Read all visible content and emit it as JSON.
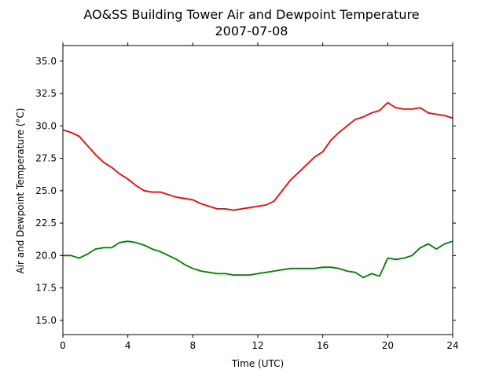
{
  "chart_data": {
    "type": "line",
    "title": "AO&SS Building Tower Air and Dewpoint Temperature",
    "subtitle": "2007-07-08",
    "xlabel": "Time (UTC)",
    "ylabel": "Air and Dewpoint Temperature (°C)",
    "xlim": [
      0,
      24
    ],
    "ylim": [
      13.9,
      36.2
    ],
    "xticks": [
      0,
      4,
      8,
      12,
      16,
      20,
      24
    ],
    "xtick_labels": [
      "0",
      "4",
      "8",
      "12",
      "16",
      "20",
      "24"
    ],
    "yticks": [
      15.0,
      17.5,
      20.0,
      22.5,
      25.0,
      27.5,
      30.0,
      32.5,
      35.0
    ],
    "ytick_labels": [
      "15.0",
      "17.5",
      "20.0",
      "22.5",
      "25.0",
      "27.5",
      "30.0",
      "32.5",
      "35.0"
    ],
    "grid": false,
    "series": [
      {
        "color": "#ff0000",
        "x": [
          0,
          0.5,
          1.0,
          1.5,
          2.0,
          2.5,
          3.0,
          3.5,
          4.0,
          4.5,
          5.0,
          5.5,
          6.0,
          6.5,
          7.0,
          7.5,
          8.0,
          8.5,
          9.0,
          9.5,
          10.0,
          10.5,
          11.0,
          11.5,
          12.0,
          12.5,
          13.0,
          13.5,
          14.0,
          14.5,
          15.0,
          15.5,
          16.0,
          16.5,
          17.0,
          17.5,
          18.0,
          18.5,
          19.0,
          19.5,
          20.0,
          20.5,
          21.0,
          21.5,
          22.0,
          22.5,
          23.0,
          23.5,
          24.0
        ],
        "values": [
          29.7,
          29.5,
          29.2,
          28.5,
          27.8,
          27.2,
          26.8,
          26.3,
          25.9,
          25.4,
          25.0,
          24.9,
          24.9,
          24.7,
          24.5,
          24.4,
          24.3,
          24.0,
          23.8,
          23.6,
          23.6,
          23.5,
          23.6,
          23.7,
          23.8,
          23.9,
          24.2,
          25.0,
          25.8,
          26.4,
          27.0,
          27.6,
          28.0,
          28.9,
          29.5,
          30.0,
          30.5,
          30.7,
          31.0,
          31.2,
          31.8,
          31.4,
          31.3,
          31.3,
          31.4,
          31.0,
          30.9,
          30.8,
          30.6
        ]
      },
      {
        "color": "#008000",
        "x": [
          0,
          0.5,
          1.0,
          1.5,
          2.0,
          2.5,
          3.0,
          3.5,
          4.0,
          4.5,
          5.0,
          5.5,
          6.0,
          6.5,
          7.0,
          7.5,
          8.0,
          8.5,
          9.0,
          9.5,
          10.0,
          10.5,
          11.0,
          11.5,
          12.0,
          12.5,
          13.0,
          13.5,
          14.0,
          14.5,
          15.0,
          15.5,
          16.0,
          16.5,
          17.0,
          17.5,
          18.0,
          18.5,
          19.0,
          19.5,
          20.0,
          20.5,
          21.0,
          21.5,
          22.0,
          22.5,
          23.0,
          23.5,
          24.0
        ],
        "values": [
          20.0,
          20.0,
          19.8,
          20.1,
          20.5,
          20.6,
          20.6,
          21.0,
          21.1,
          21.0,
          20.8,
          20.5,
          20.3,
          20.0,
          19.7,
          19.3,
          19.0,
          18.8,
          18.7,
          18.6,
          18.6,
          18.5,
          18.5,
          18.5,
          18.6,
          18.7,
          18.8,
          18.9,
          19.0,
          19.0,
          19.0,
          19.0,
          19.1,
          19.1,
          19.0,
          18.8,
          18.7,
          18.3,
          18.6,
          18.4,
          19.8,
          19.7,
          19.8,
          20.0,
          20.6,
          20.9,
          20.5,
          20.9,
          21.1
        ]
      }
    ]
  }
}
